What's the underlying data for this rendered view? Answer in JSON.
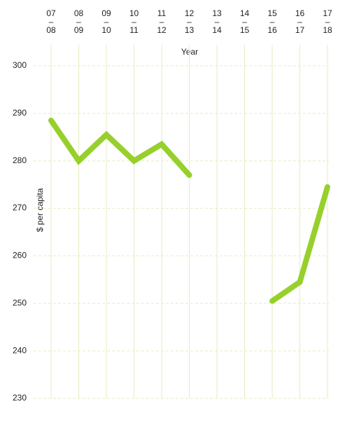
{
  "chart_data": {
    "type": "line",
    "x_label": "Year",
    "y_label": "$ per capita",
    "categories": [
      "07–08",
      "08–09",
      "09–10",
      "10–11",
      "11–12",
      "12–13",
      "13–14",
      "14–15",
      "15–16",
      "16–17",
      "17–18"
    ],
    "values": [
      288.5,
      280,
      285.5,
      280,
      283.5,
      277,
      null,
      null,
      250.5,
      254.5,
      274.5
    ],
    "color": "#97d02c",
    "ylim": [
      230,
      300
    ],
    "yticks": [
      230,
      240,
      250,
      260,
      270,
      280,
      290,
      300
    ],
    "grid": true
  }
}
